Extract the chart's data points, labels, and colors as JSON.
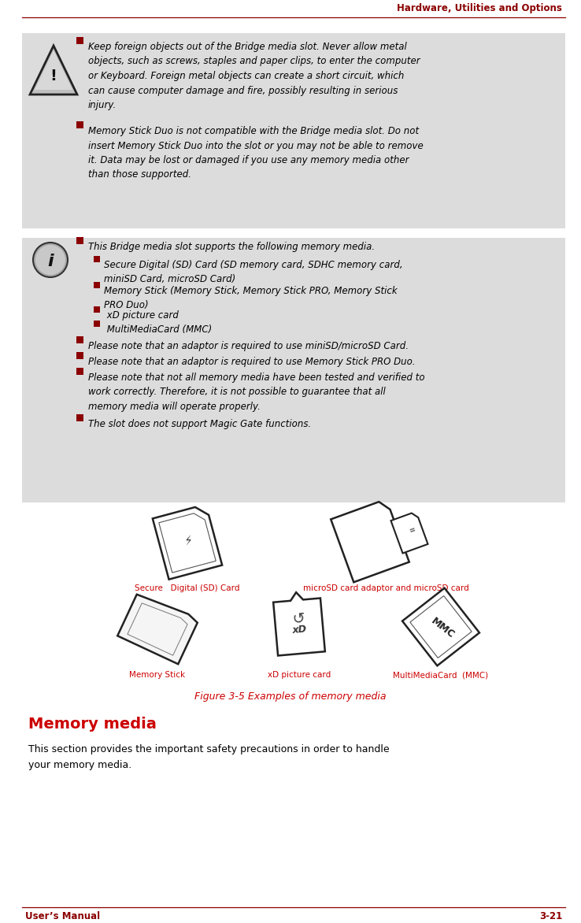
{
  "header_text": "Hardware, Utilities and Options",
  "header_color": "#8B0000",
  "footer_left": "User’s Manual",
  "footer_right": "3-21",
  "footer_color": "#8B0000",
  "line_color": "#8B0000",
  "box_color": "#DCDCDC",
  "warn_bullet1": "Keep foreign objects out of the Bridge media slot. Never allow metal\nobjects, such as screws, staples and paper clips, to enter the computer\nor Keyboard. Foreign metal objects can create a short circuit, which\ncan cause computer damage and fire, possibly resulting in serious\ninjury.",
  "warn_bullet2": "Memory Stick Duo is not compatible with the Bridge media slot. Do not\ninsert Memory Stick Duo into the slot or you may not be able to remove\nit. Data may be lost or damaged if you use any memory media other\nthan those supported.",
  "info_top": "This Bridge media slot supports the following memory media.",
  "info_sub1": "Secure Digital (SD) Card (SD memory card, SDHC memory card,\nminiSD Card, microSD Card)",
  "info_sub2": "Memory Stick (Memory Stick, Memory Stick PRO, Memory Stick\nPRO Duo)",
  "info_sub3": " xD picture card",
  "info_sub4": " MultiMediaCard (MMC)",
  "info_b1": "Please note that an adaptor is required to use miniSD/microSD Card.",
  "info_b2": "Please note that an adaptor is required to use Memory Stick PRO Duo.",
  "info_b3": "Please note that not all memory media have been tested and verified to\nwork correctly. Therefore, it is not possible to guarantee that all\nmemory media will operate properly.",
  "info_b4": "The slot does not support Magic Gate functions.",
  "figure_caption": "Figure 3-5 Examples of memory media",
  "figure_caption_color": "#CC0000",
  "lbl_sd": "Secure   Digital (SD) Card",
  "lbl_msd": "microSD card adaptor and microSD card",
  "lbl_ms": "Memory Stick",
  "lbl_xd": "xD picture card",
  "lbl_mmc": "MultiMediaCard  (MMC)",
  "card_label_color": "#CC0000",
  "section_title": "Memory media",
  "section_title_color": "#CC0000",
  "section_body": "This section provides the important safety precautions in order to handle\nyour memory media.",
  "text_color": "#000000",
  "bullet_color": "#8B0000",
  "icon_face": "#B8B8B8",
  "icon_edge": "#444444"
}
